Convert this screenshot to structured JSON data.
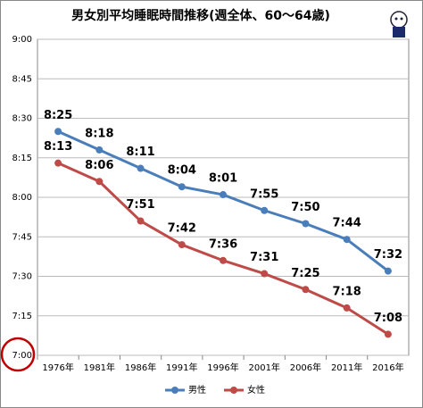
{
  "chart_data": {
    "type": "line",
    "title": "男女別平均睡眠時間推移(週全体、60～64歳)",
    "categories": [
      "1976年",
      "1981年",
      "1986年",
      "1991年",
      "1996年",
      "2001年",
      "2006年",
      "2011年",
      "2016年"
    ],
    "series": [
      {
        "name": "男性",
        "color": "#4a7ebb",
        "values": [
          505,
          498,
          491,
          484,
          481,
          475,
          470,
          464,
          452
        ],
        "value_labels": [
          "8:25",
          "8:18",
          "8:11",
          "8:04",
          "8:01",
          "7:55",
          "7:50",
          "7:44",
          "7:32"
        ]
      },
      {
        "name": "女性",
        "color": "#be4b48",
        "values": [
          493,
          486,
          471,
          462,
          456,
          451,
          445,
          438,
          428
        ],
        "value_labels": [
          "8:13",
          "8:06",
          "7:51",
          "7:42",
          "7:36",
          "7:31",
          "7:25",
          "7:18",
          "7:08"
        ]
      }
    ],
    "ylim": [
      420,
      540
    ],
    "yticks": [
      {
        "value": 420,
        "label": "7:00"
      },
      {
        "value": 435,
        "label": "7:15"
      },
      {
        "value": 450,
        "label": "7:30"
      },
      {
        "value": 465,
        "label": "7:45"
      },
      {
        "value": 480,
        "label": "8:00"
      },
      {
        "value": 495,
        "label": "8:15"
      },
      {
        "value": 510,
        "label": "8:30"
      },
      {
        "value": 525,
        "label": "8:45"
      },
      {
        "value": 540,
        "label": "9:00"
      }
    ],
    "grid": true,
    "legend": "bottom"
  }
}
